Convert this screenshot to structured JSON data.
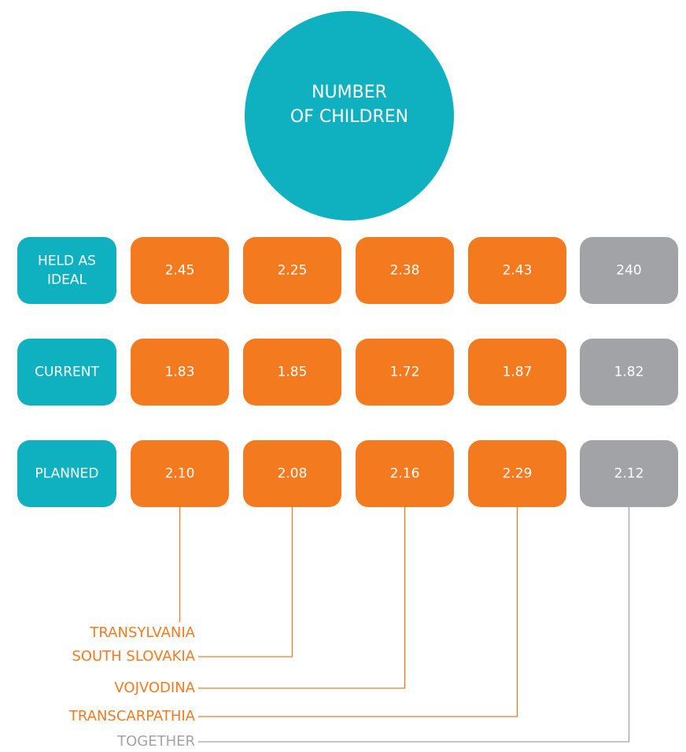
{
  "title": [
    "NUMBER",
    "OF CHILDREN"
  ],
  "rows": [
    {
      "label": [
        "HELD AS",
        "IDEAL"
      ],
      "values": [
        "2.45",
        "2.25",
        "2.38",
        "2.43",
        "240"
      ]
    },
    {
      "label": [
        "CURRENT"
      ],
      "values": [
        "1.83",
        "1.85",
        "1.72",
        "1.87",
        "1.82"
      ]
    },
    {
      "label": [
        "PLANNED"
      ],
      "values": [
        "2.10",
        "2.08",
        "2.16",
        "2.29",
        "2.12"
      ]
    }
  ],
  "regions": [
    {
      "name": "TRANSYLVANIA",
      "color": "#f47a20"
    },
    {
      "name": "SOUTH SLOVAKIA",
      "color": "#f47a20"
    },
    {
      "name": "VOJVODINA",
      "color": "#f47a20"
    },
    {
      "name": "TRANSCARPATHIA",
      "color": "#f47a20"
    },
    {
      "name": "TOGETHER",
      "color": "#a2a3a6"
    }
  ],
  "label_color": "#0fb0bf"
}
